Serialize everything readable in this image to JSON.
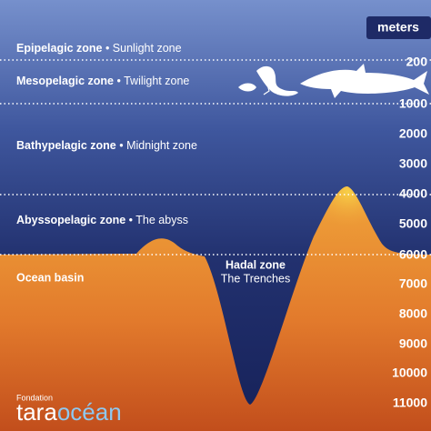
{
  "header": {
    "unit": "meters"
  },
  "zones": [
    {
      "name": "Epipelagic zone",
      "common": "• Sunlight zone"
    },
    {
      "name": "Mesopelagic zone",
      "common": "• Twilight zone"
    },
    {
      "name": "Bathypelagic zone",
      "common": "• Midnight zone"
    },
    {
      "name": "Abyssopelagic zone",
      "common": "• The abyss"
    }
  ],
  "hadal": {
    "name": "Hadal zone",
    "common": "The Trenches"
  },
  "basin": "Ocean basin",
  "depths": [
    "200",
    "1000",
    "2000",
    "3000",
    "4000",
    "5000",
    "6000",
    "7000",
    "8000",
    "9000",
    "10000",
    "11000"
  ],
  "logo": {
    "foundation": "Fondation",
    "tara": "tara",
    "ocean": "océan"
  }
}
